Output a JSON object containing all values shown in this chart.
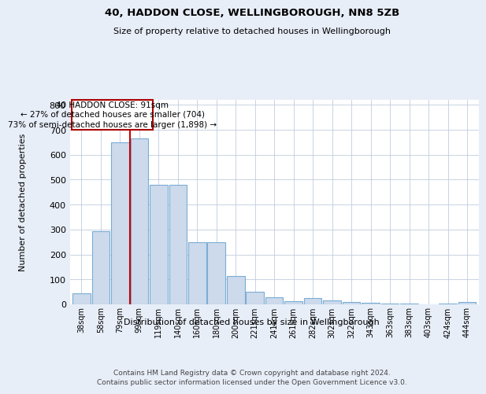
{
  "title": "40, HADDON CLOSE, WELLINGBOROUGH, NN8 5ZB",
  "subtitle": "Size of property relative to detached houses in Wellingborough",
  "xlabel": "Distribution of detached houses by size in Wellingborough",
  "ylabel": "Number of detached properties",
  "footer_line1": "Contains HM Land Registry data © Crown copyright and database right 2024.",
  "footer_line2": "Contains public sector information licensed under the Open Government Licence v3.0.",
  "categories": [
    "38sqm",
    "58sqm",
    "79sqm",
    "99sqm",
    "119sqm",
    "140sqm",
    "160sqm",
    "180sqm",
    "200sqm",
    "221sqm",
    "241sqm",
    "261sqm",
    "282sqm",
    "302sqm",
    "322sqm",
    "343sqm",
    "363sqm",
    "383sqm",
    "403sqm",
    "424sqm",
    "444sqm"
  ],
  "values": [
    45,
    293,
    650,
    665,
    478,
    478,
    250,
    250,
    115,
    50,
    28,
    13,
    25,
    15,
    8,
    5,
    3,
    2,
    1,
    2,
    10
  ],
  "bar_color": "#ccdaec",
  "bar_edge_color": "#7aadd4",
  "annotation_line_color": "#cc0000",
  "annotation_text_line1": "40 HADDON CLOSE: 91sqm",
  "annotation_text_line2": "← 27% of detached houses are smaller (704)",
  "annotation_text_line3": "73% of semi-detached houses are larger (1,898) →",
  "annotation_box_color": "#aa0000",
  "ylim": [
    0,
    820
  ],
  "yticks": [
    0,
    100,
    200,
    300,
    400,
    500,
    600,
    700,
    800
  ],
  "bg_color": "#e8eef8",
  "plot_bg_color": "#ffffff",
  "grid_color": "#c0ccdd",
  "bin_width": 20
}
